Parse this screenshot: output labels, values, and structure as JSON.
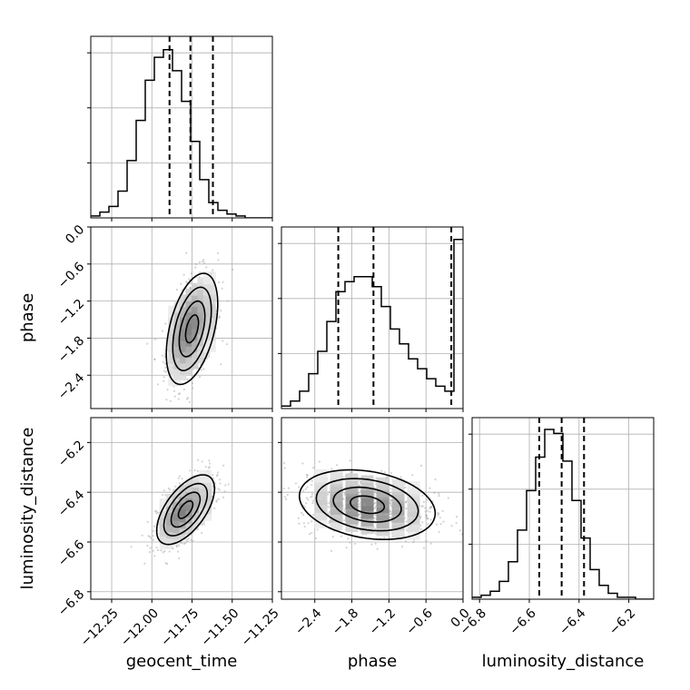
{
  "chart_data": {
    "type": "corner",
    "parameters": [
      {
        "name": "geocent_time",
        "label": "geocent_time",
        "range": [
          -12.38,
          -11.25
        ],
        "ticks": [
          -12.25,
          -12.0,
          -11.75,
          -11.5,
          -11.25
        ],
        "tick_labels": [
          "−12.25",
          "−12.00",
          "−11.75",
          "−11.50",
          "−11.25"
        ],
        "quantiles": [
          -11.89,
          -11.76,
          -11.62
        ]
      },
      {
        "name": "phase",
        "label": "phase",
        "range": [
          -2.94,
          0.0
        ],
        "ticks": [
          -2.4,
          -1.8,
          -1.2,
          -0.6,
          0.0
        ],
        "tick_labels": [
          "−2.4",
          "−1.8",
          "−1.2",
          "−0.6",
          "0.0"
        ],
        "quantiles": [
          -2.02,
          -1.45,
          -0.19
        ]
      },
      {
        "name": "luminosity_distance",
        "label": "luminosity_distance",
        "range": [
          -6.83,
          -6.1
        ],
        "ticks": [
          -6.8,
          -6.6,
          -6.4,
          -6.2
        ],
        "tick_labels": [
          "−6.8",
          "−6.6",
          "−6.4",
          "−6.2"
        ],
        "quantiles": [
          -6.56,
          -6.47,
          -6.38
        ]
      }
    ],
    "histograms": [
      {
        "param": "geocent_time",
        "bin_range": [
          -12.38,
          -11.25
        ],
        "counts": [
          1,
          3,
          6,
          14,
          30,
          51,
          72,
          84,
          88,
          77,
          61,
          40,
          20,
          8,
          4,
          2,
          1,
          0,
          0,
          0
        ],
        "ylim": [
          0,
          95
        ]
      },
      {
        "param": "phase",
        "bin_range": [
          -2.94,
          0.0
        ],
        "counts": [
          1,
          3,
          7,
          14,
          23,
          35,
          47,
          51,
          53,
          53,
          49,
          41,
          32,
          26,
          20,
          16,
          12,
          9,
          7,
          68
        ],
        "ylim": [
          0,
          73
        ]
      },
      {
        "param": "luminosity_distance",
        "bin_range": [
          -6.83,
          -6.1
        ],
        "counts": [
          1,
          2,
          4,
          9,
          19,
          35,
          55,
          72,
          86,
          84,
          70,
          50,
          31,
          15,
          7,
          3,
          1,
          1,
          0,
          0
        ],
        "ylim": [
          0,
          92
        ]
      }
    ],
    "contour_panels": [
      {
        "x": "geocent_time",
        "y": "phase",
        "center": [
          -11.75,
          -1.65
        ],
        "sigma": [
          0.08,
          0.45
        ],
        "rho": 0.45
      },
      {
        "x": "geocent_time",
        "y": "luminosity_distance",
        "center": [
          -11.79,
          -6.47
        ],
        "sigma": [
          0.09,
          0.07
        ],
        "rho": 0.6
      },
      {
        "x": "phase",
        "y": "luminosity_distance",
        "center": [
          -1.55,
          -6.45
        ],
        "sigma": [
          0.55,
          0.07
        ],
        "rho": -0.25
      }
    ],
    "line_style": "dashed quantiles, solid histogram steps",
    "grid": true
  },
  "colors": {
    "line": "#000000",
    "grid": "#b0b0b0",
    "points": "#9e9e9e"
  }
}
